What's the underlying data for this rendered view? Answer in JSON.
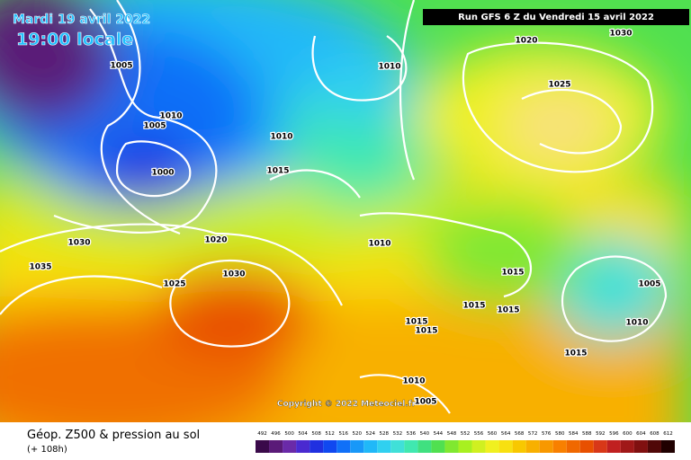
{
  "header": {
    "date": "Mardi 19 avril 2022",
    "local_time": "19:00 locale",
    "run": "Run GFS 6 Z du Vendredi 15 avril 2022"
  },
  "isobar_labels": [
    "1020",
    "1030",
    "1010",
    "1005",
    "1025",
    "1010",
    "1005",
    "1010",
    "1000",
    "1015",
    "1030",
    "1020",
    "1010",
    "1035",
    "1030",
    "1025",
    "1015",
    "1005",
    "1015",
    "1015",
    "1015",
    "1015",
    "1010",
    "1015",
    "1010",
    "1005"
  ],
  "copyright": "Copyright © 2022 Meteociel.fr",
  "footer": {
    "title": "Géop. Z500 & pression au sol",
    "lead": "(+ 108h)"
  },
  "scale": {
    "labels": [
      492,
      496,
      500,
      504,
      508,
      512,
      516,
      520,
      524,
      528,
      532,
      536,
      540,
      544,
      548,
      552,
      556,
      560,
      564,
      568,
      572,
      576,
      580,
      584,
      588,
      592,
      596,
      600,
      604,
      608,
      612
    ],
    "colors": [
      "#3a0a4a",
      "#5a1a78",
      "#6a2aa8",
      "#4a2ad0",
      "#2030e0",
      "#1048f0",
      "#1070f8",
      "#1898f8",
      "#20b8f8",
      "#30d0f0",
      "#40e0d8",
      "#40e8b0",
      "#40e080",
      "#50e050",
      "#80e830",
      "#a8f020",
      "#d0f020",
      "#f0f020",
      "#f8e010",
      "#f8c800",
      "#f8b000",
      "#f89800",
      "#f88000",
      "#f06800",
      "#e85000",
      "#d83818",
      "#c02020",
      "#a01818",
      "#801010",
      "#500808",
      "#200000"
    ]
  }
}
